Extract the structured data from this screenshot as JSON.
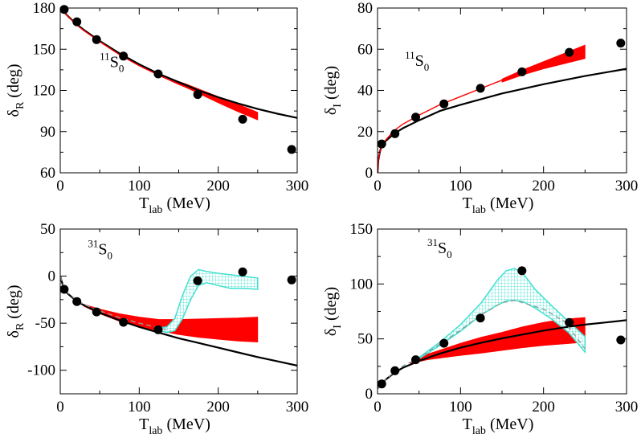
{
  "chart_data": [
    {
      "id": "tl",
      "type": "line",
      "ylabel_main": "δ",
      "ylabel_sub": "R",
      "ylabel_tail": " (deg)",
      "xlabel_main": "T",
      "xlabel_sub": "lab",
      "xlabel_tail": " (MeV)",
      "xlim": [
        0,
        300
      ],
      "ylim": [
        60,
        180
      ],
      "xticks": [
        0,
        100,
        200,
        300
      ],
      "yticks": [
        60,
        90,
        120,
        150,
        180
      ],
      "annot": {
        "sup": "11",
        "main": "S",
        "sub": "0",
        "x": 50,
        "y": 137
      },
      "series": [
        {
          "name": "black-curve",
          "color": "#000000",
          "x": [
            0,
            2,
            5,
            10,
            20,
            30,
            50,
            75,
            100,
            125,
            150,
            175,
            200,
            225,
            250,
            275,
            300
          ],
          "y": [
            180,
            179,
            177,
            174,
            168.5,
            164,
            156,
            147,
            139,
            132,
            126,
            120,
            115,
            110.5,
            106.5,
            103,
            100
          ]
        },
        {
          "name": "red-curve",
          "color": "#ff0000",
          "x": [
            0,
            5,
            10,
            20,
            30,
            50,
            75,
            100,
            125,
            150,
            175,
            200,
            225,
            250
          ],
          "y": [
            180,
            177,
            174,
            168,
            163.5,
            155.5,
            146,
            138,
            131,
            124.5,
            118.5,
            112.5,
            107,
            102
          ]
        }
      ],
      "bands": [
        {
          "name": "red-band",
          "color": "#ff0000",
          "x": [
            140,
            160,
            180,
            200,
            225,
            250
          ],
          "lo": [
            127,
            122,
            116.5,
            111,
            104.5,
            98.5
          ],
          "hi": [
            128.5,
            124.5,
            120,
            115.5,
            110,
            104
          ]
        }
      ],
      "points": {
        "x": [
          5,
          21,
          46,
          80,
          124,
          174,
          231,
          293
        ],
        "y": [
          179,
          170,
          157,
          145,
          132,
          117,
          99,
          77
        ]
      }
    },
    {
      "id": "tr",
      "type": "line",
      "ylabel_main": "δ",
      "ylabel_sub": "I",
      "ylabel_tail": " (deg)",
      "xlabel_main": "T",
      "xlabel_sub": "lab",
      "xlabel_tail": " (MeV)",
      "xlim": [
        0,
        300
      ],
      "ylim": [
        0,
        80
      ],
      "xticks": [
        0,
        100,
        200,
        300
      ],
      "yticks": [
        0,
        20,
        40,
        60,
        80
      ],
      "annot": {
        "sup": "11",
        "main": "S",
        "sub": "0",
        "x": 33,
        "y": 52
      },
      "series": [
        {
          "name": "black-curve",
          "color": "#000000",
          "x": [
            0,
            1,
            3,
            5,
            10,
            20,
            30,
            50,
            75,
            100,
            150,
            200,
            250,
            300
          ],
          "y": [
            0,
            6,
            10.5,
            13,
            15.5,
            19,
            21.5,
            25.5,
            30,
            33,
            38.5,
            43,
            47,
            50.5
          ]
        },
        {
          "name": "red-curve",
          "color": "#ff0000",
          "x": [
            0,
            1,
            3,
            5,
            10,
            20,
            30,
            50,
            75,
            100,
            125,
            150,
            175,
            200,
            225,
            250
          ],
          "y": [
            0,
            6,
            10.5,
            13,
            16,
            20.5,
            23.5,
            28,
            33,
            37,
            41,
            45,
            49,
            53,
            56.5,
            60
          ]
        }
      ],
      "bands": [
        {
          "name": "red-band",
          "color": "#ff0000",
          "x": [
            150,
            175,
            200,
            225,
            250
          ],
          "lo": [
            44,
            47.5,
            50.5,
            53,
            55.5
          ],
          "hi": [
            45.5,
            50,
            54,
            58,
            62
          ]
        }
      ],
      "points": {
        "x": [
          5,
          21,
          46,
          80,
          124,
          174,
          231,
          293
        ],
        "y": [
          14,
          19,
          27,
          33.5,
          41,
          49,
          58.5,
          63
        ]
      }
    },
    {
      "id": "bl",
      "type": "line",
      "ylabel_main": "δ",
      "ylabel_sub": "R",
      "ylabel_tail": " (deg)",
      "xlabel_main": "T",
      "xlabel_sub": "lab",
      "xlabel_tail": " (MeV)",
      "xlim": [
        0,
        300
      ],
      "ylim": [
        -125,
        50
      ],
      "xticks": [
        0,
        100,
        200,
        300
      ],
      "yticks": [
        -100,
        -50,
        0,
        50
      ],
      "annot": {
        "sup": "31",
        "main": "S",
        "sub": "0",
        "x": 35,
        "y": 23
      },
      "series": [
        {
          "name": "black-curve",
          "color": "#000000",
          "x": [
            0,
            5,
            10,
            20,
            30,
            50,
            75,
            100,
            125,
            150,
            175,
            200,
            225,
            250,
            275,
            300
          ],
          "y": [
            0,
            -15,
            -19,
            -26,
            -31,
            -39,
            -47,
            -54,
            -60,
            -66,
            -71,
            -76,
            -81,
            -86,
            -90.5,
            -95
          ]
        },
        {
          "name": "dashed-curve",
          "color": "#8aa0a0",
          "dash": "6,4",
          "x": [
            0,
            5,
            10,
            20,
            30,
            50,
            75,
            100,
            125,
            140
          ],
          "y": [
            0,
            -14,
            -18,
            -25,
            -30,
            -37,
            -44,
            -50,
            -55,
            -58
          ]
        }
      ],
      "bands": [
        {
          "name": "red-band",
          "color": "#ff0000",
          "x": [
            30,
            50,
            75,
            100,
            125,
            150,
            175,
            200,
            225,
            250
          ],
          "lo": [
            -32,
            -40,
            -48,
            -54,
            -58,
            -62,
            -65,
            -67,
            -69,
            -70
          ],
          "hi": [
            -30,
            -35,
            -40,
            -43.5,
            -46,
            -46,
            -45.5,
            -45,
            -44.5,
            -43.5
          ]
        },
        {
          "name": "cyan-hatched-band",
          "color": "#40e0d0",
          "hatch": true,
          "x": [
            125,
            135,
            145,
            155,
            165,
            175,
            185,
            200,
            215,
            230,
            250
          ],
          "lo": [
            -57,
            -60,
            -58,
            -45,
            -25,
            -10,
            -7,
            -10,
            -13,
            -13,
            -14
          ],
          "hi": [
            -55,
            -54,
            -45,
            -20,
            0,
            7,
            5,
            3,
            1.5,
            0,
            -2
          ]
        }
      ],
      "points": {
        "x": [
          5,
          21,
          46,
          80,
          124,
          174,
          231,
          293
        ],
        "y": [
          -14,
          -27,
          -38,
          -49,
          -57,
          -5,
          4.5,
          -4
        ]
      }
    },
    {
      "id": "br",
      "type": "line",
      "ylabel_main": "δ",
      "ylabel_sub": "I",
      "ylabel_tail": " (deg)",
      "xlabel_main": "T",
      "xlabel_sub": "lab",
      "xlabel_tail": " (MeV)",
      "xlim": [
        0,
        300
      ],
      "ylim": [
        0,
        150
      ],
      "xticks": [
        0,
        100,
        200,
        300
      ],
      "yticks": [
        0,
        50,
        100,
        150
      ],
      "annot": {
        "sup": "31",
        "main": "S",
        "sub": "0",
        "x": 60,
        "y": 128
      },
      "series": [
        {
          "name": "black-curve",
          "color": "#000000",
          "x": [
            0,
            5,
            10,
            20,
            30,
            50,
            75,
            100,
            125,
            150,
            175,
            200,
            225,
            250,
            275,
            300
          ],
          "y": [
            5,
            9,
            13,
            19,
            23.5,
            30,
            36.5,
            42,
            46.5,
            50.5,
            54,
            57.5,
            60.5,
            63,
            65,
            67
          ]
        },
        {
          "name": "dashed-curve",
          "color": "#8aa0a0",
          "dash": "6,4",
          "x": [
            0,
            5,
            10,
            20,
            30,
            50,
            75,
            100,
            125,
            150,
            165,
            175,
            200,
            225,
            250
          ],
          "y": [
            5,
            9,
            13,
            20,
            25,
            33,
            45,
            58,
            72,
            83,
            85,
            83,
            77,
            66,
            41
          ]
        }
      ],
      "bands": [
        {
          "name": "red-band",
          "color": "#ff0000",
          "x": [
            40,
            60,
            80,
            100,
            125,
            150,
            175,
            200,
            225,
            250
          ],
          "lo": [
            27.5,
            31,
            33,
            35,
            37,
            39.5,
            42,
            44,
            45.5,
            47
          ],
          "hi": [
            29,
            36,
            41,
            46,
            51.5,
            56,
            61,
            65,
            68,
            69.5
          ]
        },
        {
          "name": "cyan-hatched-band",
          "color": "#40e0d0",
          "hatch": true,
          "x": [
            50,
            75,
            100,
            125,
            145,
            155,
            165,
            175,
            190,
            210,
            230,
            250
          ],
          "lo": [
            32,
            44,
            57,
            72,
            81,
            84.5,
            85,
            84,
            78,
            68,
            56,
            38
          ],
          "hi": [
            33,
            47,
            63,
            83,
            104,
            112,
            114,
            110,
            95,
            80,
            66,
            52
          ]
        }
      ],
      "points": {
        "x": [
          5,
          21,
          46,
          80,
          124,
          174,
          231,
          293
        ],
        "y": [
          9,
          21,
          31,
          46,
          69,
          112,
          65,
          49
        ]
      }
    }
  ]
}
